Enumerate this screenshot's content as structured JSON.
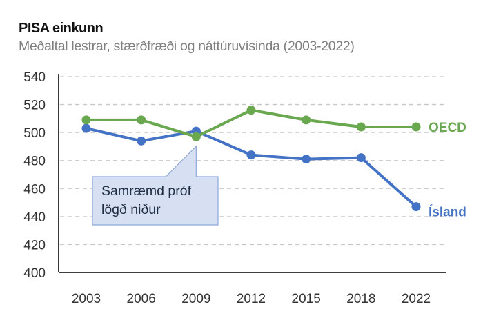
{
  "chart_data": {
    "type": "line",
    "title": "PISA einkunn",
    "subtitle": "Meðaltal lestrar, stærðfræði og náttúruvísinda (2003-2022)",
    "xlabel": "",
    "ylabel": "",
    "categories": [
      "2003",
      "2006",
      "2009",
      "2012",
      "2015",
      "2018",
      "2022"
    ],
    "ylim": [
      400,
      540
    ],
    "yticks": [
      400,
      420,
      440,
      460,
      480,
      500,
      520,
      540
    ],
    "grid": true,
    "series": [
      {
        "name": "OECD",
        "color": "#6aa84f",
        "values": [
          509,
          509,
          497,
          516,
          509,
          504,
          504
        ]
      },
      {
        "name": "Ísland",
        "color": "#4472c4",
        "values": [
          503,
          494,
          501,
          484,
          481,
          482,
          447
        ]
      }
    ],
    "annotation": {
      "lines": [
        "Samræmd próf",
        "lögð niður"
      ],
      "category": "2009",
      "fill": "#d6e0f2",
      "stroke": "#8ea9d8"
    }
  }
}
